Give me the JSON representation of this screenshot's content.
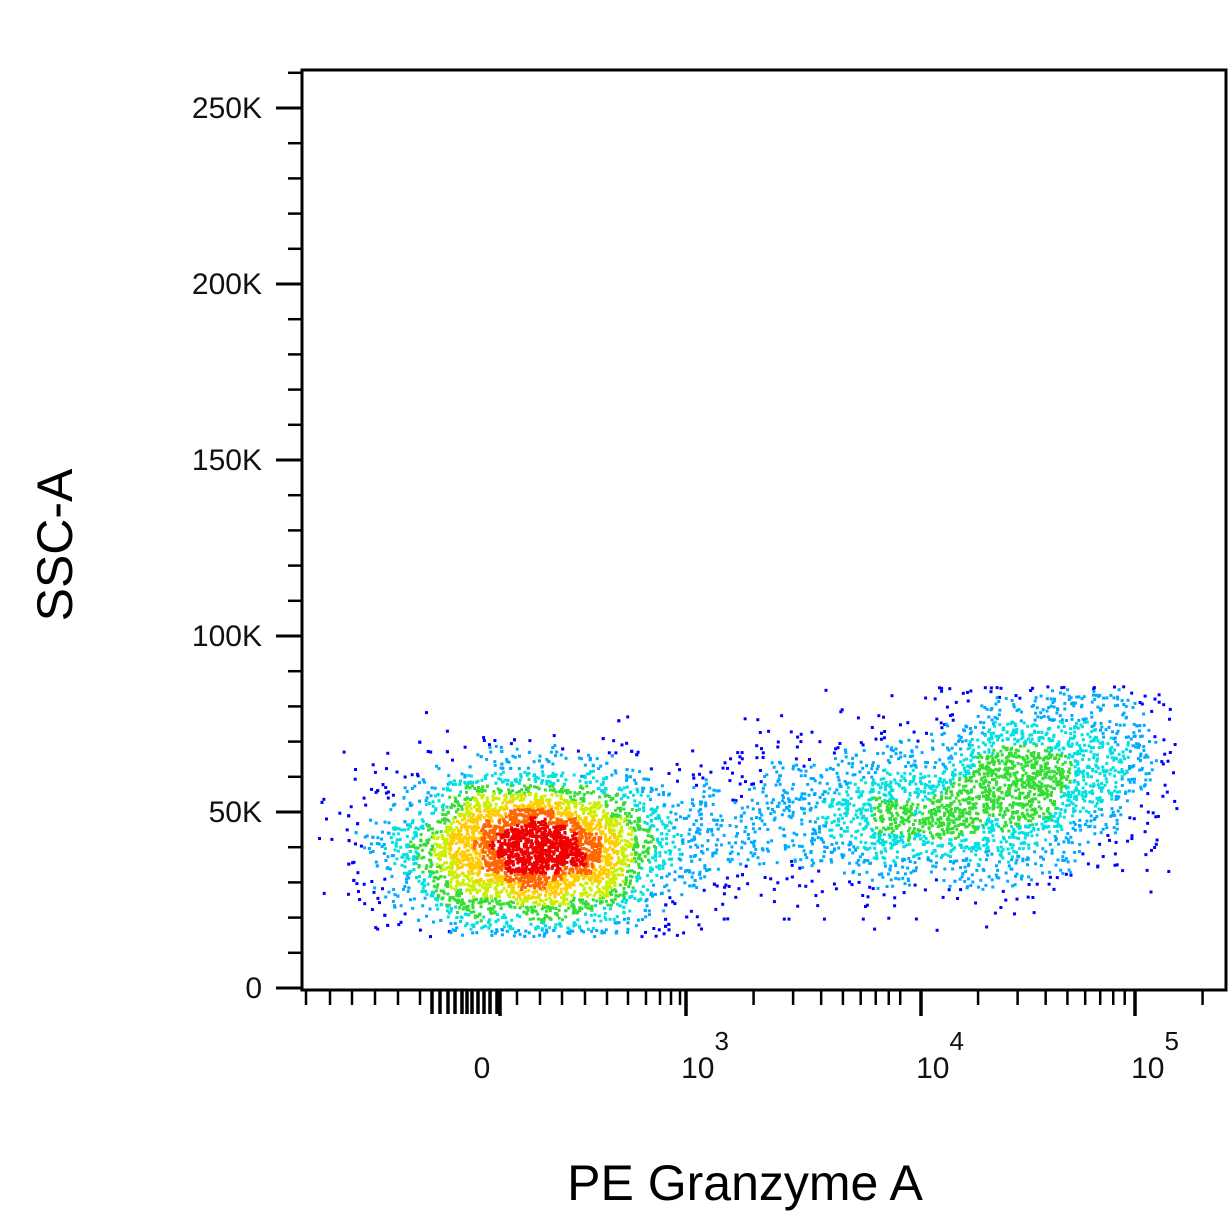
{
  "chart_data": {
    "type": "scatter",
    "title": "",
    "xlabel": "PE Granzyme A",
    "ylabel": "SSC-A",
    "x_scale": "biexponential",
    "ylim": [
      0,
      262144
    ],
    "x_ticks": [
      {
        "value": 0,
        "base": "0",
        "exponent": ""
      },
      {
        "value": 1000,
        "base": "10",
        "exponent": "3"
      },
      {
        "value": 10000,
        "base": "10",
        "exponent": "4"
      },
      {
        "value": 100000,
        "base": "10",
        "exponent": "5"
      }
    ],
    "y_ticks": [
      {
        "value": 0,
        "label": "0"
      },
      {
        "value": 50000,
        "label": "50K"
      },
      {
        "value": 100000,
        "label": "100K"
      },
      {
        "value": 150000,
        "label": "150K"
      },
      {
        "value": 200000,
        "label": "200K"
      },
      {
        "value": 250000,
        "label": "250K"
      }
    ],
    "populations": [
      {
        "name": "",
        "x_center": 250,
        "x_log_sd": 0.25,
        "y_center": 40000,
        "y_sd": 11000,
        "count": 5200
      },
      {
        "name": "",
        "x_center": 9000,
        "x_log_sd": 0.25,
        "y_center": 50000,
        "y_sd": 9000,
        "count": 650
      },
      {
        "name": "",
        "x_center": 32000,
        "x_log_sd": 0.3,
        "y_center": 58000,
        "y_sd": 13000,
        "count": 1900
      }
    ],
    "density_colors": [
      "#0000ff",
      "#00aaff",
      "#00e0e0",
      "#33dd33",
      "#ccee00",
      "#ffcc00",
      "#ff6600",
      "#ee0000"
    ],
    "frame_color": "#000000",
    "grid": false
  }
}
